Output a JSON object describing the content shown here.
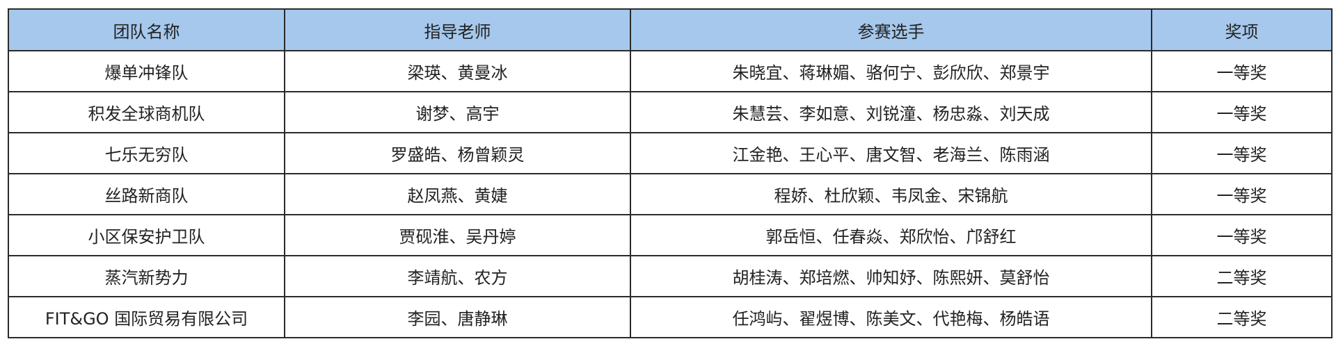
{
  "table": {
    "headers": [
      "团队名称",
      "指导老师",
      "参赛选手",
      "奖项"
    ],
    "rows": [
      [
        "爆单冲锋队",
        "梁瑛、黄曼冰",
        "朱晓宜、蒋琳媚、骆何宁、彭欣欣、郑景宇",
        "一等奖"
      ],
      [
        "积发全球商机队",
        "谢梦、高宇",
        "朱慧芸、李如意、刘锐潼、杨忠淼、刘天成",
        "一等奖"
      ],
      [
        "七乐无穷队",
        "罗盛皓、杨曾颖灵",
        "江金艳、王心平、唐文智、老海兰、陈雨涵",
        "一等奖"
      ],
      [
        "丝路新商队",
        "赵凤燕、黄婕",
        "程娇、杜欣颖、韦凤金、宋锦航",
        "一等奖"
      ],
      [
        "小区保安护卫队",
        "贾砚淮、吴丹婷",
        "郭岳恒、任春焱、郑欣怡、邝舒红",
        "一等奖"
      ],
      [
        "蒸汽新势力",
        "李靖航、农方",
        "胡桂涛、郑培燃、帅知妤、陈熙妍、莫舒怡",
        "二等奖"
      ],
      [
        "FIT&GO 国际贸易有限公司",
        "李园、唐静琳",
        "任鸿屿、翟煜博、陈美文、代艳梅、杨皓语",
        "二等奖"
      ]
    ]
  },
  "colors": {
    "header_bg": "#a6c8ec",
    "border": "#2a2a2a"
  }
}
